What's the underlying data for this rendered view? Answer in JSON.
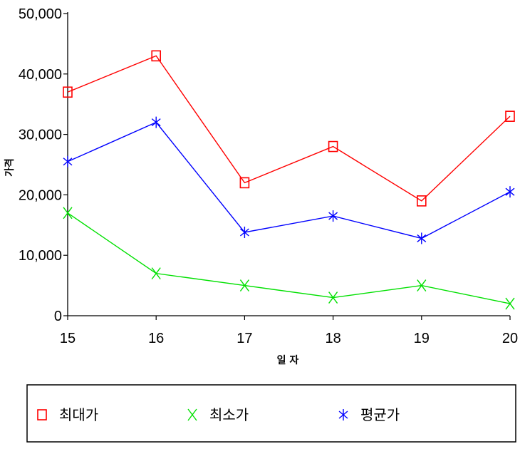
{
  "chart_data": {
    "type": "line",
    "x": [
      15,
      16,
      17,
      18,
      19,
      20
    ],
    "xlabel": "일 자",
    "ylabel": "가격",
    "xlim": [
      15,
      20
    ],
    "ylim": [
      0,
      50000
    ],
    "yticks": [
      "0",
      "10,000",
      "20,000",
      "30,000",
      "40,000",
      "50,000"
    ],
    "xticks": [
      "15",
      "16",
      "17",
      "18",
      "19",
      "20"
    ],
    "grid": false,
    "legend_position": "bottom",
    "series": [
      {
        "name": "최대가",
        "color": "#ff0000",
        "marker": "square",
        "values": [
          37000,
          43000,
          22000,
          28000,
          19000,
          33000
        ]
      },
      {
        "name": "최소가",
        "color": "#00e000",
        "marker": "x",
        "values": [
          17000,
          7000,
          5000,
          3000,
          5000,
          2000
        ]
      },
      {
        "name": "평균가",
        "color": "#0000ff",
        "marker": "asterisk",
        "values": [
          25500,
          32000,
          13800,
          16500,
          12800,
          20500
        ]
      }
    ]
  }
}
